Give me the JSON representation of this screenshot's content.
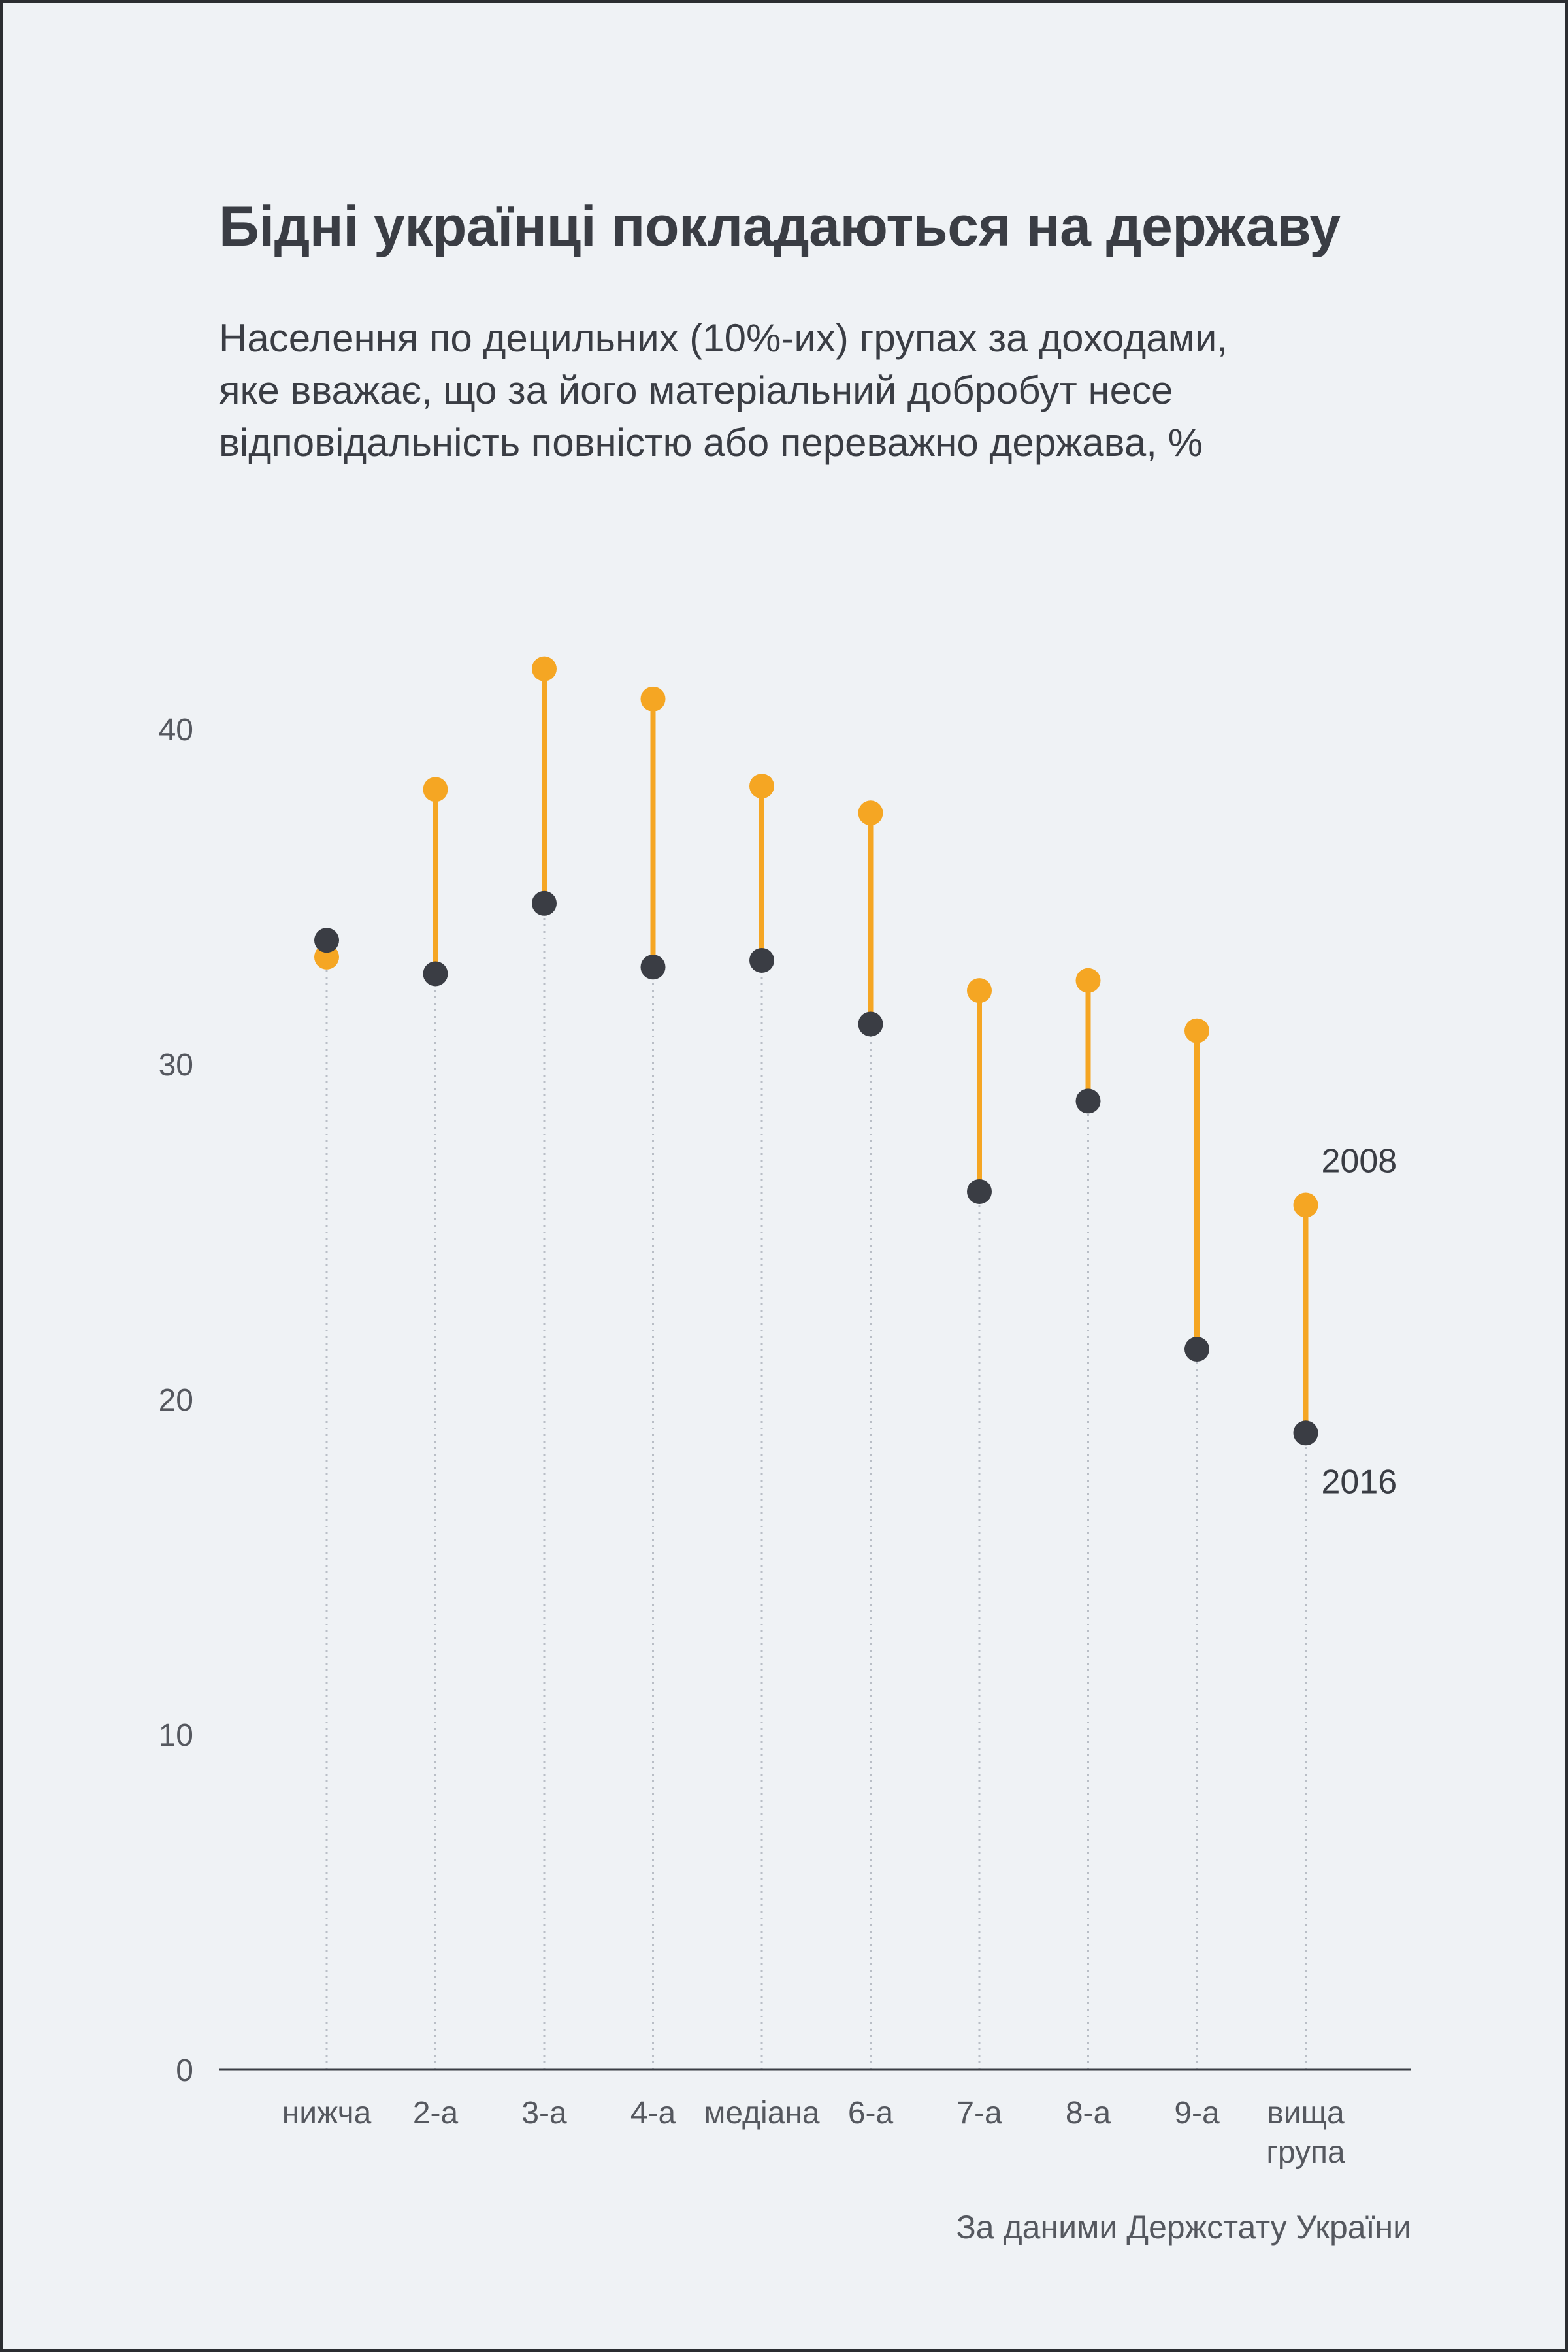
{
  "colors": {
    "background": "#eff2f5",
    "y2008": "#f5a623",
    "y2016": "#3a3d44",
    "guide": "#b9bec6",
    "axis": "#3a3d44"
  },
  "chart_data": {
    "type": "dumbbell",
    "title": "Бідні українці покладаються на державу",
    "subtitle_lines": [
      "Населення по децильних (10%-их) групах за доходами,",
      "яке вважає, що за його матеріальний добробут несе",
      "відповідальність повністю або переважно держава, %"
    ],
    "source": "За даними Держстату України",
    "categories": [
      [
        "нижча"
      ],
      [
        "2-а"
      ],
      [
        "3-а"
      ],
      [
        "4-а"
      ],
      [
        "медіана"
      ],
      [
        "6-а"
      ],
      [
        "7-а"
      ],
      [
        "8-а"
      ],
      [
        "9-а"
      ],
      [
        "вища",
        "група"
      ]
    ],
    "series": [
      {
        "name": "2008",
        "values": [
          33.2,
          38.2,
          41.8,
          40.9,
          38.3,
          37.5,
          32.2,
          32.5,
          31.0,
          25.8
        ]
      },
      {
        "name": "2016",
        "values": [
          33.7,
          32.7,
          34.8,
          32.9,
          33.1,
          31.2,
          26.2,
          28.9,
          21.5,
          19.0
        ]
      }
    ],
    "ylim": [
      0,
      45
    ],
    "yticks": [
      0,
      10,
      20,
      30,
      40
    ],
    "legend": "direct labels at last category"
  }
}
